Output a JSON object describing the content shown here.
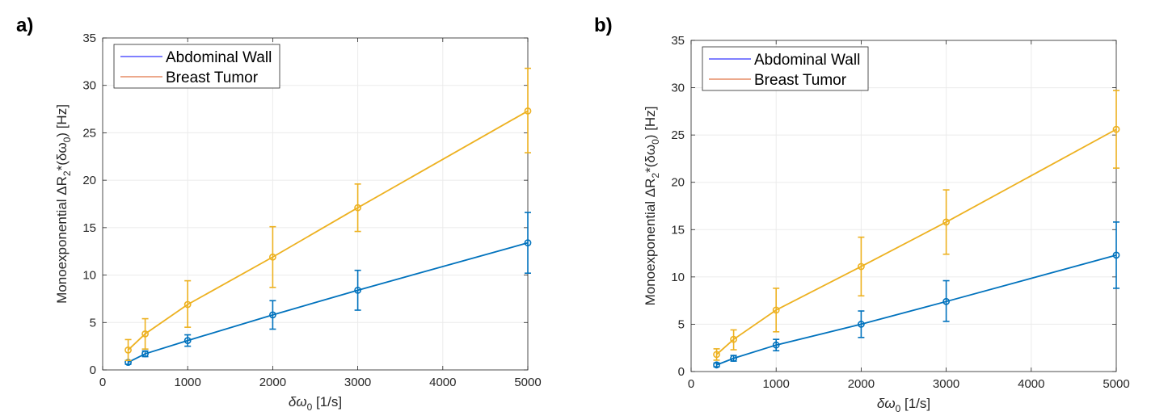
{
  "panels": [
    {
      "label": "a)",
      "chart_data": {
        "type": "line",
        "xlabel": {
          "symbol": "δω",
          "sub": "0",
          "unit": " [1/s]"
        },
        "ylabel": {
          "pre": "Monoexponential ΔR",
          "sub": "2",
          "mid": "*(δω",
          "sub2": "0",
          "post": ") [Hz]"
        },
        "xlim": [
          0,
          5000
        ],
        "ylim": [
          0,
          35
        ],
        "xticks": [
          0,
          1000,
          2000,
          3000,
          4000,
          5000
        ],
        "yticks": [
          0,
          5,
          10,
          15,
          20,
          25,
          30,
          35
        ],
        "grid": true,
        "legend_position": "top-left",
        "x": [
          300,
          500,
          1000,
          2000,
          3000,
          5000
        ],
        "series": [
          {
            "name": "Abdominal Wall",
            "color": "#0072BD",
            "legend_color": "#0000ff",
            "values": [
              0.8,
              1.7,
              3.1,
              5.8,
              8.4,
              13.4
            ],
            "lower": [
              0.6,
              1.4,
              2.5,
              4.3,
              6.3,
              10.2
            ],
            "upper": [
              1.0,
              2.0,
              3.7,
              7.3,
              10.5,
              16.6
            ]
          },
          {
            "name": "Breast Tumor",
            "color": "#EDB120",
            "legend_color": "#D95319",
            "values": [
              2.1,
              3.8,
              6.9,
              11.9,
              17.1,
              27.3
            ],
            "lower": [
              1.0,
              2.2,
              4.5,
              8.7,
              14.6,
              22.9
            ],
            "upper": [
              3.2,
              5.4,
              9.4,
              15.1,
              19.6,
              31.8
            ]
          }
        ]
      }
    },
    {
      "label": "b)",
      "chart_data": {
        "type": "line",
        "xlabel": {
          "symbol": "δω",
          "sub": "0",
          "unit": " [1/s]"
        },
        "ylabel": {
          "pre": "Monoexponential ΔR",
          "sub": "2",
          "mid": "*(δω",
          "sub2": "0",
          "post": ") [Hz]"
        },
        "xlim": [
          0,
          5000
        ],
        "ylim": [
          0,
          35
        ],
        "xticks": [
          0,
          1000,
          2000,
          3000,
          4000,
          5000
        ],
        "yticks": [
          0,
          5,
          10,
          15,
          20,
          25,
          30,
          35
        ],
        "grid": true,
        "legend_position": "top-left",
        "x": [
          300,
          500,
          1000,
          2000,
          3000,
          5000
        ],
        "series": [
          {
            "name": "Abdominal Wall",
            "color": "#0072BD",
            "legend_color": "#0000ff",
            "values": [
              0.7,
              1.4,
              2.8,
              5.0,
              7.4,
              12.3
            ],
            "lower": [
              0.5,
              1.1,
              2.2,
              3.6,
              5.3,
              8.8
            ],
            "upper": [
              0.9,
              1.7,
              3.4,
              6.4,
              9.6,
              15.8
            ]
          },
          {
            "name": "Breast Tumor",
            "color": "#EDB120",
            "legend_color": "#D95319",
            "values": [
              1.8,
              3.4,
              6.5,
              11.1,
              15.8,
              25.6
            ],
            "lower": [
              1.2,
              2.3,
              4.2,
              8.0,
              12.4,
              21.5
            ],
            "upper": [
              2.4,
              4.4,
              8.8,
              14.2,
              19.2,
              29.7
            ]
          }
        ]
      }
    }
  ]
}
